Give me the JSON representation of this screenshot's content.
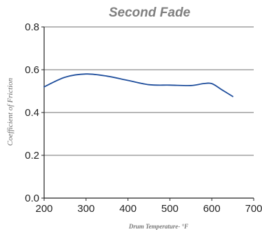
{
  "chart_data": {
    "type": "line",
    "title": "Second Fade",
    "xlabel": "Drum Temperature- °F",
    "ylabel": "Coefficient of Friction",
    "xlim": [
      200,
      700
    ],
    "ylim": [
      0.0,
      0.8
    ],
    "x_ticks": [
      200,
      300,
      400,
      500,
      600,
      700
    ],
    "y_ticks": [
      0.0,
      0.2,
      0.4,
      0.6,
      0.8
    ],
    "x_tick_labels": [
      "200",
      "300",
      "400",
      "500",
      "600",
      "700"
    ],
    "y_tick_labels": [
      "0.0",
      "0.2",
      "0.4",
      "0.6",
      "0.8"
    ],
    "grid": "horizontal",
    "series": [
      {
        "color": "#1f4e9c",
        "x": [
          200,
          250,
          300,
          350,
          400,
          450,
          500,
          550,
          580,
          600,
          625,
          650
        ],
        "y": [
          0.52,
          0.565,
          0.58,
          0.57,
          0.55,
          0.53,
          0.528,
          0.526,
          0.535,
          0.535,
          0.505,
          0.475
        ]
      }
    ]
  }
}
